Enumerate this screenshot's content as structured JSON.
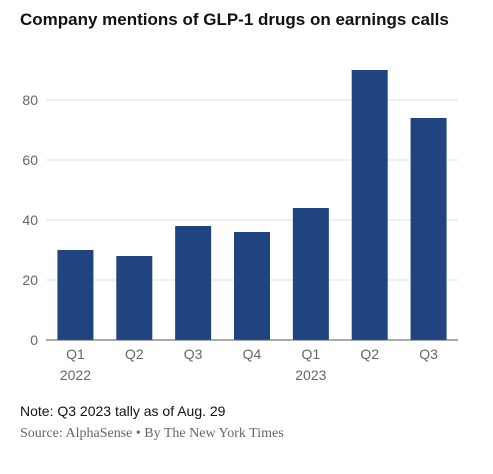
{
  "header": {
    "title": "Company mentions of GLP-1 drugs on earnings calls"
  },
  "footer": {
    "note": "Note: Q3 2023 tally as of Aug. 29",
    "source": "Source: AlphaSense • By The New York Times"
  },
  "colors": {
    "bar": "#1f4480",
    "grid": "#e2e2e2",
    "axis": "#555555",
    "tick_text": "#666666"
  },
  "chart_data": {
    "type": "bar",
    "title": "Company mentions of GLP-1 drugs on earnings calls",
    "categories": [
      "Q1",
      "Q2",
      "Q3",
      "Q4",
      "Q1",
      "Q2",
      "Q3"
    ],
    "year_labels": [
      "2022",
      "",
      "",
      "",
      "2023",
      "",
      ""
    ],
    "values": [
      30,
      28,
      38,
      36,
      44,
      90,
      74
    ],
    "ylim": [
      0,
      90
    ],
    "yticks": [
      0,
      20,
      40,
      60,
      80
    ],
    "grid": true,
    "legend": "none"
  }
}
